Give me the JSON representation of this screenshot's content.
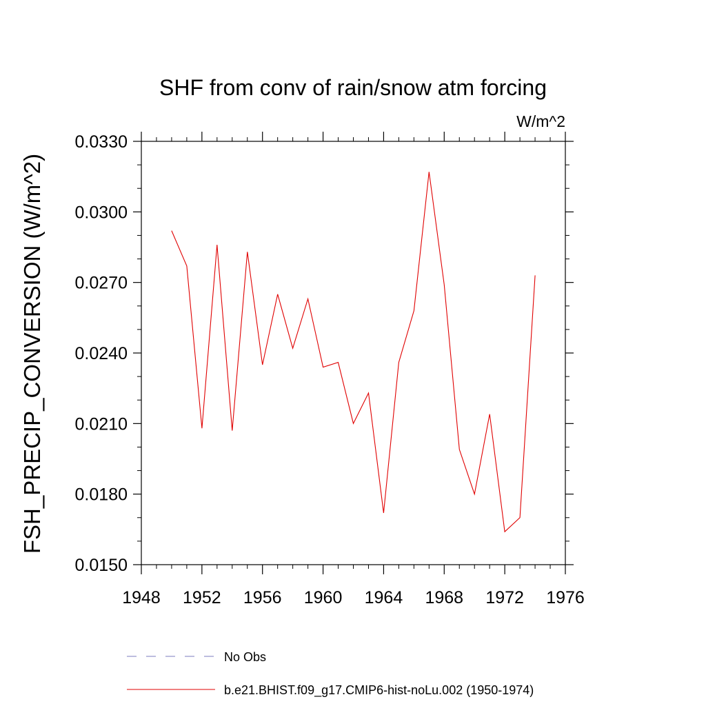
{
  "chart_data": {
    "type": "line",
    "title": "SHF from conv of rain/snow atm forcing",
    "units_label": "W/m^2",
    "ylabel": "FSH_PRECIP_CONVERSION  (W/m^2)",
    "xlabel": "",
    "xlim": [
      1948,
      1976
    ],
    "ylim": [
      0.015,
      0.033
    ],
    "x_ticks": [
      "1948",
      "1952",
      "1956",
      "1960",
      "1964",
      "1968",
      "1972",
      "1976"
    ],
    "y_ticks": [
      "0.0150",
      "0.0180",
      "0.0210",
      "0.0240",
      "0.0270",
      "0.0300",
      "0.0330"
    ],
    "grid": false,
    "series": [
      {
        "name": "b.e21.BHIST.f09_g17.CMIP6-hist-noLu.002 (1950-1974)",
        "color": "#e00000",
        "x": [
          1950,
          1951,
          1952,
          1953,
          1954,
          1955,
          1956,
          1957,
          1958,
          1959,
          1960,
          1961,
          1962,
          1963,
          1964,
          1965,
          1966,
          1967,
          1968,
          1969,
          1970,
          1971,
          1972,
          1973,
          1974
        ],
        "values": [
          0.0292,
          0.0277,
          0.0208,
          0.0286,
          0.0207,
          0.0283,
          0.0235,
          0.0265,
          0.0242,
          0.0263,
          0.0234,
          0.0236,
          0.021,
          0.0223,
          0.0172,
          0.0236,
          0.0258,
          0.0317,
          0.0269,
          0.0199,
          0.018,
          0.0214,
          0.0164,
          0.017,
          0.0273
        ]
      }
    ],
    "legend": [
      {
        "label": "No Obs",
        "style": "dashed",
        "color": "#7b7bbf"
      },
      {
        "label": "b.e21.BHIST.f09_g17.CMIP6-hist-noLu.002 (1950-1974)",
        "style": "solid",
        "color": "#e00000"
      }
    ],
    "legend_position": "bottom"
  }
}
